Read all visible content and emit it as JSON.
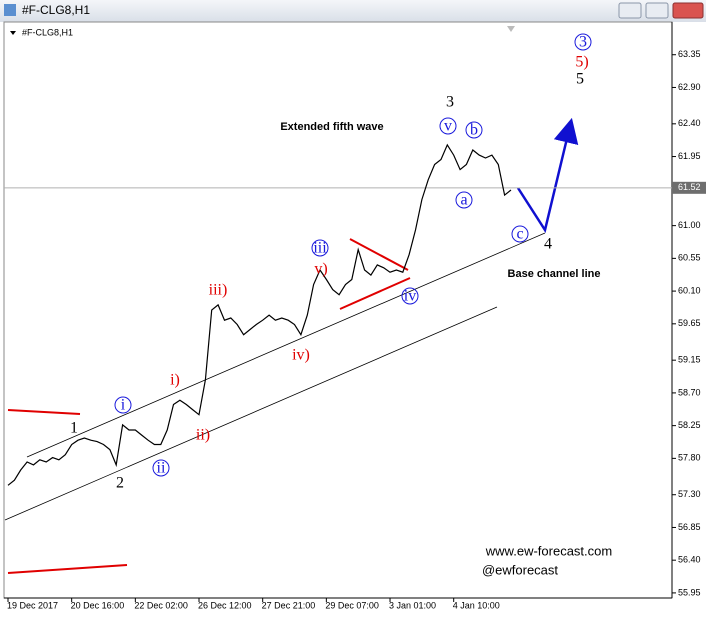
{
  "window_title": "#F-CLG8,H1",
  "chart_data": {
    "type": "line",
    "symbol_label": "#F-CLG8,H1",
    "categories": [
      "19 Dec 2017",
      null,
      null,
      null,
      null,
      null,
      null,
      null,
      null,
      null,
      "20 Dec 16:00",
      null,
      null,
      null,
      null,
      null,
      null,
      null,
      null,
      null,
      "22 Dec 02:00",
      null,
      null,
      null,
      null,
      null,
      null,
      null,
      null,
      null,
      "26 Dec 12:00",
      null,
      null,
      null,
      null,
      null,
      null,
      null,
      null,
      null,
      "27 Dec 21:00",
      null,
      null,
      null,
      null,
      null,
      null,
      null,
      null,
      null,
      "29 Dec 07:00",
      null,
      null,
      null,
      null,
      null,
      null,
      null,
      null,
      null,
      "3 Jan 01:00",
      null,
      null,
      null,
      null,
      null,
      null,
      null,
      null,
      null,
      "4 Jan 10:00",
      null,
      null,
      null,
      null,
      null,
      null,
      null,
      null,
      null
    ],
    "series": [
      {
        "name": "#F-CLG8",
        "color": "#000000",
        "values": [
          57.43,
          57.5,
          57.64,
          57.75,
          57.71,
          57.78,
          57.75,
          57.81,
          57.78,
          57.85,
          57.99,
          58.05,
          58.08,
          58.05,
          58.03,
          57.99,
          57.92,
          57.71,
          58.26,
          58.19,
          58.19,
          58.12,
          58.05,
          57.99,
          57.99,
          58.19,
          58.54,
          58.6,
          58.54,
          58.47,
          58.4,
          58.88,
          59.84,
          59.91,
          59.7,
          59.73,
          59.64,
          59.5,
          59.57,
          59.64,
          59.7,
          59.77,
          59.7,
          59.73,
          59.7,
          59.64,
          59.5,
          59.77,
          60.19,
          60.39,
          60.26,
          60.12,
          60.05,
          60.19,
          60.26,
          60.67,
          60.39,
          60.32,
          60.46,
          60.42,
          60.36,
          60.39,
          60.36,
          60.6,
          60.94,
          61.36,
          61.63,
          61.84,
          61.91,
          62.11,
          61.97,
          61.77,
          61.84,
          62.04,
          61.97,
          61.93,
          61.97,
          61.84,
          61.42,
          61.49
        ]
      }
    ],
    "ylim": [
      55.88,
      63.8
    ],
    "yticks": [
      63.35,
      {
        "value": 62.9,
        "label": "62.90"
      },
      {
        "value": 62.4,
        "label": "62.40"
      },
      61.95,
      {
        "value": 61.0,
        "label": "61.00"
      },
      60.55,
      {
        "value": 60.1,
        "label": "60.10"
      },
      59.65,
      59.15,
      {
        "value": 58.7,
        "label": "58.70"
      },
      58.25,
      {
        "value": 57.8,
        "label": "57.80"
      },
      {
        "value": 57.3,
        "label": "57.30"
      },
      56.85,
      {
        "value": 56.4,
        "label": "56.40"
      },
      55.95
    ],
    "last_price": 61.52,
    "grid": false,
    "annotations": [
      {
        "text": "1",
        "color": "#000000",
        "circled": false
      },
      {
        "text": "2",
        "color": "#000000",
        "circled": false
      },
      {
        "text": "i",
        "color": "#1a1adc",
        "circled": true
      },
      {
        "text": "ii",
        "color": "#1a1adc",
        "circled": true
      },
      {
        "text": "i)",
        "color": "#e00000",
        "circled": false
      },
      {
        "text": "ii)",
        "color": "#e00000",
        "circled": false
      },
      {
        "text": "iii)",
        "color": "#e00000",
        "circled": false
      },
      {
        "text": "iii",
        "color": "#1a1adc",
        "circled": true
      },
      {
        "text": "v)",
        "color": "#e00000",
        "circled": false
      },
      {
        "text": "iv)",
        "color": "#e00000",
        "circled": false
      },
      {
        "text": "iv",
        "color": "#1a1adc",
        "circled": true
      },
      {
        "text": "3",
        "color": "#000000",
        "circled": false
      },
      {
        "text": "v",
        "color": "#1a1adc",
        "circled": true
      },
      {
        "text": "b",
        "color": "#1a1adc",
        "circled": true
      },
      {
        "text": "a",
        "color": "#1a1adc",
        "circled": true
      },
      {
        "text": "c",
        "color": "#1a1adc",
        "circled": true
      },
      {
        "text": "4",
        "color": "#000000",
        "circled": false
      },
      {
        "text": "3",
        "color": "#1a1adc",
        "circled": true
      },
      {
        "text": "5)",
        "color": "#e00000",
        "circled": false
      },
      {
        "text": "5",
        "color": "#000000",
        "circled": false
      }
    ],
    "notes": [
      "Extended fifth wave",
      "Base channel line"
    ],
    "watermark": [
      "www.ew-forecast.com",
      "@ewforecast"
    ]
  }
}
